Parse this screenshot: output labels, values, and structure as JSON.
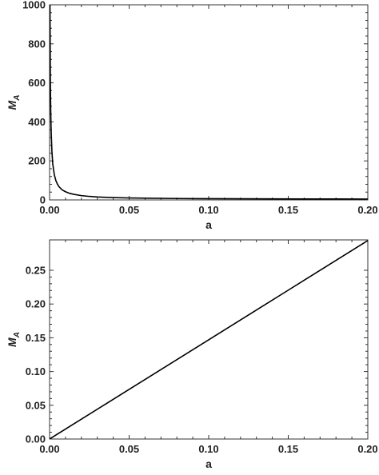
{
  "chart_data": [
    {
      "type": "line",
      "title": "",
      "xlabel": "a",
      "ylabel": "M",
      "ylabel_sub": "A",
      "ylabel_accent": "",
      "xlim": [
        0,
        0.2
      ],
      "ylim": [
        0,
        1000
      ],
      "xticks": [
        0,
        0.05,
        0.1,
        0.15,
        0.2
      ],
      "xtick_labels": [
        "0.00",
        "0.05",
        "0.10",
        "0.15",
        "0.20"
      ],
      "yticks": [
        0,
        200,
        400,
        600,
        800,
        1000
      ],
      "ytick_labels": [
        "0",
        "200",
        "400",
        "600",
        "800",
        "1000"
      ],
      "grid": false,
      "series": [
        {
          "color": "#000000",
          "x": [
            0.00025,
            0.0005,
            0.00075,
            0.001,
            0.0015,
            0.002,
            0.003,
            0.004,
            0.005,
            0.006,
            0.008,
            0.01,
            0.0125,
            0.015,
            0.02,
            0.025,
            0.03,
            0.04,
            0.05,
            0.06,
            0.08,
            0.1,
            0.12,
            0.14,
            0.16,
            0.18,
            0.2
          ],
          "y": [
            1000,
            600,
            445,
            350,
            245,
            185,
            128,
            98,
            80,
            67,
            51,
            42,
            34,
            29,
            22,
            18,
            15,
            12,
            10,
            8.8,
            7.2,
            6.3,
            5.7,
            5.3,
            5.0,
            4.8,
            4.6
          ]
        }
      ]
    },
    {
      "type": "line",
      "title": "",
      "xlabel": "a",
      "ylabel": "M",
      "ylabel_sub": "A",
      "ylabel_accent": "˜",
      "xlim": [
        0,
        0.2
      ],
      "ylim": [
        0,
        0.295
      ],
      "xticks": [
        0,
        0.05,
        0.1,
        0.15,
        0.2
      ],
      "xtick_labels": [
        "0.00",
        "0.05",
        "0.10",
        "0.15",
        "0.20"
      ],
      "yticks": [
        0,
        0.05,
        0.1,
        0.15,
        0.2,
        0.25
      ],
      "ytick_labels": [
        "0.00",
        "0.05",
        "0.10",
        "0.15",
        "0.20",
        "0.25"
      ],
      "grid": false,
      "series": [
        {
          "color": "#000000",
          "x": [
            0,
            0.05,
            0.1,
            0.15,
            0.2
          ],
          "y": [
            0,
            0.0735,
            0.147,
            0.2205,
            0.294
          ]
        }
      ]
    }
  ]
}
